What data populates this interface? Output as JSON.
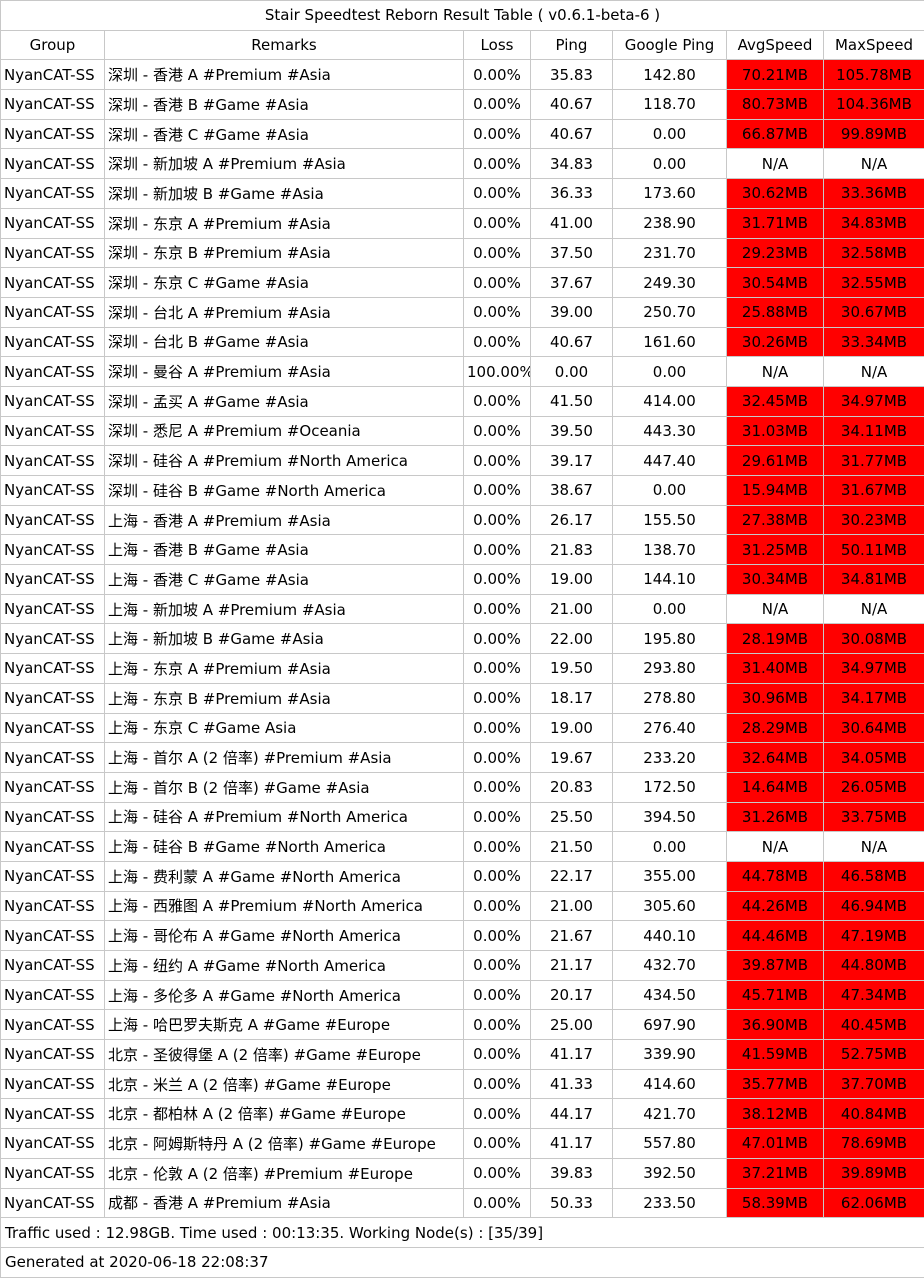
{
  "title": "Stair Speedtest Reborn Result Table ( v0.6.1-beta-6 )",
  "headers": [
    "Group",
    "Remarks",
    "Loss",
    "Ping",
    "Google Ping",
    "AvgSpeed",
    "MaxSpeed"
  ],
  "colors": {
    "speed_fill": "#ff0000",
    "border": "#c8c8c8"
  },
  "rows": [
    {
      "group": "NyanCAT-SS",
      "remarks": "深圳 - 香港 A #Premium #Asia",
      "loss": "0.00%",
      "ping": "35.83",
      "gping": "142.80",
      "avg": "70.21MB",
      "max": "105.78MB"
    },
    {
      "group": "NyanCAT-SS",
      "remarks": "深圳 - 香港 B #Game #Asia",
      "loss": "0.00%",
      "ping": "40.67",
      "gping": "118.70",
      "avg": "80.73MB",
      "max": "104.36MB"
    },
    {
      "group": "NyanCAT-SS",
      "remarks": "深圳 - 香港 C #Game #Asia",
      "loss": "0.00%",
      "ping": "40.67",
      "gping": "0.00",
      "avg": "66.87MB",
      "max": "99.89MB"
    },
    {
      "group": "NyanCAT-SS",
      "remarks": "深圳 - 新加坡 A #Premium #Asia",
      "loss": "0.00%",
      "ping": "34.83",
      "gping": "0.00",
      "avg": "N/A",
      "max": "N/A"
    },
    {
      "group": "NyanCAT-SS",
      "remarks": "深圳 - 新加坡 B #Game #Asia",
      "loss": "0.00%",
      "ping": "36.33",
      "gping": "173.60",
      "avg": "30.62MB",
      "max": "33.36MB"
    },
    {
      "group": "NyanCAT-SS",
      "remarks": "深圳 - 东京 A #Premium #Asia",
      "loss": "0.00%",
      "ping": "41.00",
      "gping": "238.90",
      "avg": "31.71MB",
      "max": "34.83MB"
    },
    {
      "group": "NyanCAT-SS",
      "remarks": "深圳 - 东京 B #Premium #Asia",
      "loss": "0.00%",
      "ping": "37.50",
      "gping": "231.70",
      "avg": "29.23MB",
      "max": "32.58MB"
    },
    {
      "group": "NyanCAT-SS",
      "remarks": "深圳 - 东京 C #Game #Asia",
      "loss": "0.00%",
      "ping": "37.67",
      "gping": "249.30",
      "avg": "30.54MB",
      "max": "32.55MB"
    },
    {
      "group": "NyanCAT-SS",
      "remarks": "深圳 - 台北 A #Premium #Asia",
      "loss": "0.00%",
      "ping": "39.00",
      "gping": "250.70",
      "avg": "25.88MB",
      "max": "30.67MB"
    },
    {
      "group": "NyanCAT-SS",
      "remarks": "深圳 - 台北 B #Game #Asia",
      "loss": "0.00%",
      "ping": "40.67",
      "gping": "161.60",
      "avg": "30.26MB",
      "max": "33.34MB"
    },
    {
      "group": "NyanCAT-SS",
      "remarks": "深圳 - 曼谷 A #Premium #Asia",
      "loss": "100.00%",
      "ping": "0.00",
      "gping": "0.00",
      "avg": "N/A",
      "max": "N/A"
    },
    {
      "group": "NyanCAT-SS",
      "remarks": "深圳 - 孟买 A #Game #Asia",
      "loss": "0.00%",
      "ping": "41.50",
      "gping": "414.00",
      "avg": "32.45MB",
      "max": "34.97MB"
    },
    {
      "group": "NyanCAT-SS",
      "remarks": "深圳 - 悉尼 A #Premium #Oceania",
      "loss": "0.00%",
      "ping": "39.50",
      "gping": "443.30",
      "avg": "31.03MB",
      "max": "34.11MB"
    },
    {
      "group": "NyanCAT-SS",
      "remarks": "深圳 - 硅谷 A #Premium #North America",
      "loss": "0.00%",
      "ping": "39.17",
      "gping": "447.40",
      "avg": "29.61MB",
      "max": "31.77MB"
    },
    {
      "group": "NyanCAT-SS",
      "remarks": "深圳 - 硅谷 B #Game #North America",
      "loss": "0.00%",
      "ping": "38.67",
      "gping": "0.00",
      "avg": "15.94MB",
      "max": "31.67MB"
    },
    {
      "group": "NyanCAT-SS",
      "remarks": "上海 - 香港 A #Premium #Asia",
      "loss": "0.00%",
      "ping": "26.17",
      "gping": "155.50",
      "avg": "27.38MB",
      "max": "30.23MB"
    },
    {
      "group": "NyanCAT-SS",
      "remarks": "上海 - 香港 B #Game #Asia",
      "loss": "0.00%",
      "ping": "21.83",
      "gping": "138.70",
      "avg": "31.25MB",
      "max": "50.11MB"
    },
    {
      "group": "NyanCAT-SS",
      "remarks": "上海 - 香港 C #Game #Asia",
      "loss": "0.00%",
      "ping": "19.00",
      "gping": "144.10",
      "avg": "30.34MB",
      "max": "34.81MB"
    },
    {
      "group": "NyanCAT-SS",
      "remarks": "上海 - 新加坡 A #Premium #Asia",
      "loss": "0.00%",
      "ping": "21.00",
      "gping": "0.00",
      "avg": "N/A",
      "max": "N/A"
    },
    {
      "group": "NyanCAT-SS",
      "remarks": "上海 - 新加坡 B #Game #Asia",
      "loss": "0.00%",
      "ping": "22.00",
      "gping": "195.80",
      "avg": "28.19MB",
      "max": "30.08MB"
    },
    {
      "group": "NyanCAT-SS",
      "remarks": "上海 - 东京 A #Premium #Asia",
      "loss": "0.00%",
      "ping": "19.50",
      "gping": "293.80",
      "avg": "31.40MB",
      "max": "34.97MB"
    },
    {
      "group": "NyanCAT-SS",
      "remarks": "上海 - 东京 B #Premium #Asia",
      "loss": "0.00%",
      "ping": "18.17",
      "gping": "278.80",
      "avg": "30.96MB",
      "max": "34.17MB"
    },
    {
      "group": "NyanCAT-SS",
      "remarks": "上海 - 东京 C #Game Asia",
      "loss": "0.00%",
      "ping": "19.00",
      "gping": "276.40",
      "avg": "28.29MB",
      "max": "30.64MB"
    },
    {
      "group": "NyanCAT-SS",
      "remarks": "上海 - 首尔 A (2 倍率) #Premium #Asia",
      "loss": "0.00%",
      "ping": "19.67",
      "gping": "233.20",
      "avg": "32.64MB",
      "max": "34.05MB"
    },
    {
      "group": "NyanCAT-SS",
      "remarks": "上海 - 首尔 B (2 倍率) #Game #Asia",
      "loss": "0.00%",
      "ping": "20.83",
      "gping": "172.50",
      "avg": "14.64MB",
      "max": "26.05MB"
    },
    {
      "group": "NyanCAT-SS",
      "remarks": "上海 - 硅谷 A #Premium #North America",
      "loss": "0.00%",
      "ping": "25.50",
      "gping": "394.50",
      "avg": "31.26MB",
      "max": "33.75MB"
    },
    {
      "group": "NyanCAT-SS",
      "remarks": "上海 - 硅谷 B #Game #North America",
      "loss": "0.00%",
      "ping": "21.50",
      "gping": "0.00",
      "avg": "N/A",
      "max": "N/A"
    },
    {
      "group": "NyanCAT-SS",
      "remarks": "上海 - 费利蒙 A #Game #North America",
      "loss": "0.00%",
      "ping": "22.17",
      "gping": "355.00",
      "avg": "44.78MB",
      "max": "46.58MB"
    },
    {
      "group": "NyanCAT-SS",
      "remarks": "上海 - 西雅图 A #Premium #North America",
      "loss": "0.00%",
      "ping": "21.00",
      "gping": "305.60",
      "avg": "44.26MB",
      "max": "46.94MB"
    },
    {
      "group": "NyanCAT-SS",
      "remarks": "上海 - 哥伦布 A #Game #North America",
      "loss": "0.00%",
      "ping": "21.67",
      "gping": "440.10",
      "avg": "44.46MB",
      "max": "47.19MB"
    },
    {
      "group": "NyanCAT-SS",
      "remarks": "上海 - 纽约 A #Game #North America",
      "loss": "0.00%",
      "ping": "21.17",
      "gping": "432.70",
      "avg": "39.87MB",
      "max": "44.80MB"
    },
    {
      "group": "NyanCAT-SS",
      "remarks": "上海 - 多伦多 A #Game #North America",
      "loss": "0.00%",
      "ping": "20.17",
      "gping": "434.50",
      "avg": "45.71MB",
      "max": "47.34MB"
    },
    {
      "group": "NyanCAT-SS",
      "remarks": "上海 - 哈巴罗夫斯克 A #Game #Europe",
      "loss": "0.00%",
      "ping": "25.00",
      "gping": "697.90",
      "avg": "36.90MB",
      "max": "40.45MB"
    },
    {
      "group": "NyanCAT-SS",
      "remarks": "北京 - 圣彼得堡 A (2 倍率) #Game #Europe",
      "loss": "0.00%",
      "ping": "41.17",
      "gping": "339.90",
      "avg": "41.59MB",
      "max": "52.75MB"
    },
    {
      "group": "NyanCAT-SS",
      "remarks": "北京 - 米兰 A (2 倍率) #Game #Europe",
      "loss": "0.00%",
      "ping": "41.33",
      "gping": "414.60",
      "avg": "35.77MB",
      "max": "37.70MB"
    },
    {
      "group": "NyanCAT-SS",
      "remarks": "北京 - 都柏林 A (2 倍率) #Game #Europe",
      "loss": "0.00%",
      "ping": "44.17",
      "gping": "421.70",
      "avg": "38.12MB",
      "max": "40.84MB"
    },
    {
      "group": "NyanCAT-SS",
      "remarks": "北京 - 阿姆斯特丹 A (2 倍率) #Game #Europe",
      "loss": "0.00%",
      "ping": "41.17",
      "gping": "557.80",
      "avg": "47.01MB",
      "max": "78.69MB"
    },
    {
      "group": "NyanCAT-SS",
      "remarks": "北京 - 伦敦 A (2 倍率) #Premium #Europe",
      "loss": "0.00%",
      "ping": "39.83",
      "gping": "392.50",
      "avg": "37.21MB",
      "max": "39.89MB"
    },
    {
      "group": "NyanCAT-SS",
      "remarks": "成都 - 香港 A #Premium #Asia",
      "loss": "0.00%",
      "ping": "50.33",
      "gping": "233.50",
      "avg": "58.39MB",
      "max": "62.06MB"
    }
  ],
  "footer": {
    "traffic": "Traffic used : 12.98GB. Time used : 00:13:35. Working Node(s) : [35/39]",
    "generated": "Generated at 2020-06-18 22:08:37"
  }
}
